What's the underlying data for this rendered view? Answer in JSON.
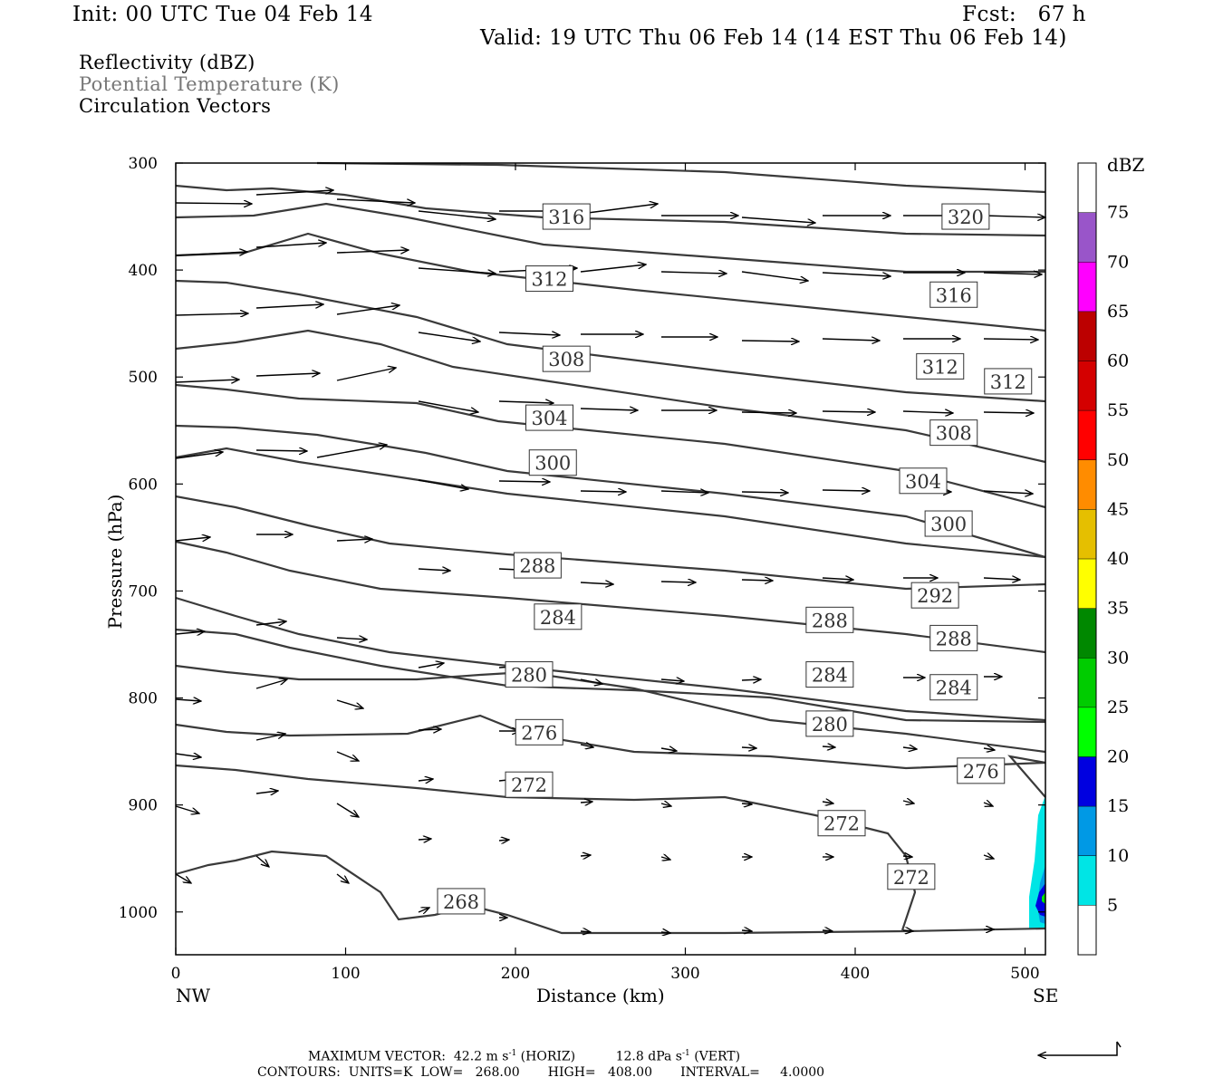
{
  "header": {
    "init": "Init: 00 UTC Tue 04 Feb 14",
    "fcst": "Fcst:   67 h",
    "valid": "Valid: 19 UTC Thu 06 Feb 14 (14 EST Thu 06 Feb 14)",
    "fields": [
      "Reflectivity (dBZ)",
      "Potential Temperature (K)",
      "Circulation Vectors"
    ]
  },
  "chart_data": {
    "type": "cross-section",
    "xlabel": "Distance (km)",
    "ylabel": "Pressure (hPa)",
    "xlim": [
      0,
      512
    ],
    "ylim": [
      300,
      1040
    ],
    "x_ticks": [
      0,
      100,
      200,
      300,
      400,
      500
    ],
    "y_ticks": [
      300,
      400,
      500,
      600,
      700,
      800,
      900,
      1000
    ],
    "x_end_labels": {
      "left": "NW",
      "right": "SE"
    },
    "colorbar": {
      "unit": "dBZ",
      "levels": [
        5,
        10,
        15,
        20,
        25,
        30,
        35,
        40,
        45,
        50,
        55,
        60,
        65,
        70,
        75
      ],
      "colors": [
        "#ffffff",
        "#00e5e5",
        "#0099e5",
        "#0000e0",
        "#00ff00",
        "#00cc00",
        "#008800",
        "#ffff00",
        "#e5bf00",
        "#ff8c00",
        "#ff0000",
        "#d40000",
        "#bc0000",
        "#ff00ff",
        "#9955c9",
        "#ffffff"
      ]
    },
    "theta_labels": [
      {
        "value": "316",
        "x": 230,
        "p": 350
      },
      {
        "value": "320",
        "x": 465,
        "p": 350
      },
      {
        "value": "312",
        "x": 220,
        "p": 408
      },
      {
        "value": "316",
        "x": 458,
        "p": 423
      },
      {
        "value": "308",
        "x": 230,
        "p": 483
      },
      {
        "value": "312",
        "x": 450,
        "p": 490
      },
      {
        "value": "312",
        "x": 490,
        "p": 504
      },
      {
        "value": "304",
        "x": 220,
        "p": 538
      },
      {
        "value": "308",
        "x": 458,
        "p": 552
      },
      {
        "value": "300",
        "x": 222,
        "p": 580
      },
      {
        "value": "304",
        "x": 440,
        "p": 597
      },
      {
        "value": "300",
        "x": 455,
        "p": 637
      },
      {
        "value": "288",
        "x": 213,
        "p": 676
      },
      {
        "value": "292",
        "x": 447,
        "p": 704
      },
      {
        "value": "284",
        "x": 225,
        "p": 724
      },
      {
        "value": "288",
        "x": 385,
        "p": 727
      },
      {
        "value": "288",
        "x": 458,
        "p": 744
      },
      {
        "value": "280",
        "x": 208,
        "p": 778
      },
      {
        "value": "284",
        "x": 385,
        "p": 778
      },
      {
        "value": "284",
        "x": 458,
        "p": 790
      },
      {
        "value": "280",
        "x": 385,
        "p": 824
      },
      {
        "value": "276",
        "x": 214,
        "p": 832
      },
      {
        "value": "276",
        "x": 474,
        "p": 868
      },
      {
        "value": "272",
        "x": 208,
        "p": 881
      },
      {
        "value": "272",
        "x": 392,
        "p": 917
      },
      {
        "value": "272",
        "x": 433,
        "p": 967
      },
      {
        "value": "268",
        "x": 168,
        "p": 990
      }
    ],
    "reflectivity_max_dbz": 20
  },
  "footer": {
    "max_vector_label": "MAXIMUM VECTOR:",
    "horiz": "42.2 m s",
    "horiz_sup": "-1",
    "horiz_tag": "(HORIZ)",
    "vert": "12.8 dPa s",
    "vert_sup": "-1",
    "vert_tag": "(VERT)",
    "contours": "CONTOURS:  UNITS=K  LOW=   268.00       HIGH=   408.00       INTERVAL=     4.0000"
  }
}
